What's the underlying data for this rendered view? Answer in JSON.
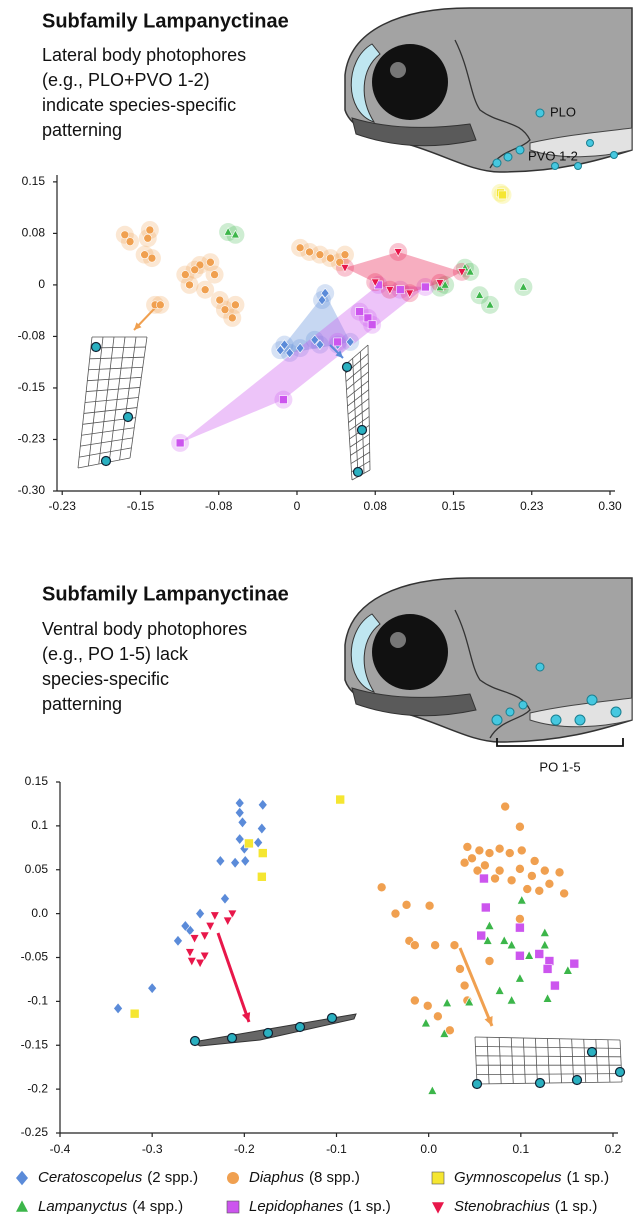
{
  "chart_data": [
    {
      "type": "scatter",
      "title": "Subfamily Lampanyctinae",
      "subtitle": [
        "Lateral body photophores",
        "(e.g., PLO+PVO 1-2)",
        "indicate species-specific",
        "patterning"
      ],
      "annotations": [
        "PLO",
        "PVO 1-2"
      ],
      "xlim": [
        -0.23,
        0.3
      ],
      "ylim": [
        -0.3,
        0.16
      ],
      "xticks": [
        {
          "value": -0.225,
          "label": "-0.23"
        },
        -0.15,
        {
          "value": -0.075,
          "label": "-0.08"
        },
        0,
        {
          "value": 0.075,
          "label": "0.08"
        },
        0.15,
        {
          "value": 0.225,
          "label": "0.23"
        },
        {
          "value": 0.3,
          "label": "0.30"
        }
      ],
      "yticks": [
        0.15,
        {
          "value": 0.075,
          "label": "0.08"
        },
        0,
        {
          "value": -0.075,
          "label": "-0.08"
        },
        -0.15,
        {
          "value": -0.225,
          "label": "-0.23"
        },
        {
          "value": -0.3,
          "label": "-0.30"
        }
      ],
      "halo": true,
      "series": [
        {
          "color": "#5b8bd9",
          "marker": "diamond",
          "hull": true,
          "x": [
            0.027,
            0.024,
            -0.016,
            -0.007,
            0.003,
            0.017,
            0.022,
            0.039,
            0.051,
            -0.012
          ],
          "y": [
            -0.012,
            -0.022,
            -0.095,
            -0.099,
            -0.092,
            -0.08,
            -0.087,
            -0.087,
            -0.083,
            -0.087
          ]
        },
        {
          "color": "#f0a050",
          "marker": "circle",
          "x": [
            -0.165,
            -0.16,
            -0.141,
            -0.143,
            -0.146,
            -0.139,
            -0.107,
            -0.103,
            -0.093,
            -0.083,
            -0.088,
            -0.074,
            -0.069,
            -0.062,
            -0.059,
            -0.098,
            -0.079,
            0.003,
            0.012,
            0.022,
            0.032,
            0.041,
            0.046,
            -0.136,
            -0.131
          ],
          "y": [
            0.073,
            0.063,
            0.08,
            0.068,
            0.044,
            0.039,
            0.015,
            0.0,
            0.029,
            0.033,
            -0.007,
            -0.022,
            -0.036,
            -0.048,
            -0.029,
            0.022,
            0.015,
            0.054,
            0.048,
            0.044,
            0.039,
            0.033,
            0.044,
            -0.029,
            -0.029
          ]
        },
        {
          "color": "#f5e631",
          "marker": "square",
          "x": [
            0.195,
            0.197
          ],
          "y": [
            0.134,
            0.131
          ]
        },
        {
          "color": "#3cb64a",
          "marker": "triangle",
          "x": [
            -0.066,
            -0.059,
            0.137,
            0.142,
            0.161,
            0.166,
            0.175,
            0.185,
            0.217
          ],
          "y": [
            0.077,
            0.073,
            -0.004,
            0.0,
            0.025,
            0.019,
            -0.015,
            -0.029,
            -0.003
          ]
        },
        {
          "color": "#cc55ee",
          "marker": "square",
          "hull": true,
          "x": [
            -0.112,
            -0.013,
            0.039,
            0.068,
            0.072,
            0.078,
            0.099,
            0.123,
            0.06
          ],
          "y": [
            -0.23,
            -0.167,
            -0.083,
            -0.048,
            -0.058,
            0.0,
            -0.007,
            -0.003,
            -0.039
          ]
        },
        {
          "color": "#e8174a",
          "marker": "triangle-down",
          "hull": true,
          "x": [
            0.046,
            0.075,
            0.097,
            0.108,
            0.137,
            0.158,
            0.089
          ],
          "y": [
            0.025,
            0.004,
            0.048,
            -0.012,
            0.003,
            0.019,
            -0.007
          ]
        }
      ]
    },
    {
      "type": "scatter",
      "title": "Subfamily Lampanyctinae",
      "subtitle": [
        "Ventral body photophores",
        "(e.g., PO 1-5) lack",
        "species-specific",
        "patterning"
      ],
      "annotations": [
        "PO 1-5"
      ],
      "xlim": [
        -0.4,
        0.2
      ],
      "ylim": [
        -0.25,
        0.15
      ],
      "xticks": [
        -0.4,
        -0.3,
        -0.2,
        -0.1,
        {
          "value": 0,
          "label": "0.0"
        },
        0.1,
        0.2
      ],
      "yticks": [
        0.15,
        0.1,
        0.05,
        {
          "value": 0,
          "label": "0.0"
        },
        -0.05,
        -0.1,
        -0.15,
        -0.2,
        -0.25
      ],
      "series": [
        {
          "name": "Ceratoscopelus",
          "count": "(2 spp.)",
          "color": "#5b8bd9",
          "marker": "diamond",
          "x": [
            -0.205,
            -0.205,
            -0.18,
            -0.202,
            -0.181,
            -0.205,
            -0.2,
            -0.185,
            -0.226,
            -0.21,
            -0.199,
            -0.221,
            -0.248,
            -0.259,
            -0.264,
            -0.272,
            -0.3,
            -0.337
          ],
          "y": [
            0.126,
            0.115,
            0.124,
            0.104,
            0.097,
            0.085,
            0.074,
            0.081,
            0.06,
            0.058,
            0.06,
            0.017,
            0.0,
            -0.019,
            -0.014,
            -0.031,
            -0.085,
            -0.108
          ]
        },
        {
          "name": "Diaphus",
          "count": "(8 spp.)",
          "color": "#f0a050",
          "marker": "circle",
          "x": [
            0.083,
            0.099,
            0.042,
            0.055,
            0.066,
            0.077,
            0.088,
            0.101,
            0.115,
            0.126,
            0.142,
            0.147,
            0.12,
            0.107,
            0.09,
            0.072,
            0.053,
            0.039,
            0.047,
            0.061,
            0.077,
            0.099,
            0.112,
            0.131,
            -0.051,
            -0.024,
            0.001,
            -0.021,
            -0.015,
            0.007,
            0.028,
            0.034,
            0.039,
            -0.001,
            -0.015,
            0.01,
            0.023,
            0.042,
            0.066,
            -0.036,
            0.099
          ],
          "y": [
            0.122,
            0.099,
            0.076,
            0.072,
            0.069,
            0.074,
            0.069,
            0.072,
            0.06,
            0.049,
            0.047,
            0.023,
            0.026,
            0.028,
            0.038,
            0.04,
            0.049,
            0.058,
            0.063,
            0.055,
            0.049,
            0.051,
            0.043,
            0.034,
            0.03,
            0.01,
            0.009,
            -0.031,
            -0.036,
            -0.036,
            -0.036,
            -0.063,
            -0.082,
            -0.105,
            -0.099,
            -0.117,
            -0.133,
            -0.099,
            -0.054,
            0.0,
            -0.006
          ]
        },
        {
          "name": "Gymnoscopelus",
          "count": "(1 sp.)",
          "color": "#f5e631",
          "marker": "square",
          "x": [
            -0.096,
            -0.195,
            -0.18,
            -0.181,
            -0.319
          ],
          "y": [
            0.13,
            0.08,
            0.069,
            0.042,
            -0.114
          ]
        },
        {
          "name": "Lampanyctus",
          "count": "(4 spp.)",
          "color": "#3cb64a",
          "marker": "triangle",
          "x": [
            0.101,
            0.126,
            0.126,
            0.066,
            0.064,
            0.082,
            0.09,
            0.109,
            0.151,
            0.099,
            0.077,
            0.129,
            0.09,
            0.044,
            0.02,
            -0.003,
            0.017,
            0.004
          ],
          "y": [
            0.015,
            -0.022,
            -0.036,
            -0.014,
            -0.031,
            -0.031,
            -0.036,
            -0.048,
            -0.065,
            -0.074,
            -0.088,
            -0.097,
            -0.099,
            -0.101,
            -0.102,
            -0.125,
            -0.137,
            -0.202
          ]
        },
        {
          "name": "Lepidophanes",
          "count": "(1 sp.)",
          "color": "#cc55ee",
          "marker": "square",
          "x": [
            0.06,
            0.062,
            0.057,
            0.099,
            0.099,
            0.12,
            0.131,
            0.129,
            0.158,
            0.137
          ],
          "y": [
            0.04,
            0.007,
            -0.025,
            -0.016,
            -0.048,
            -0.046,
            -0.054,
            -0.063,
            -0.057,
            -0.082
          ]
        },
        {
          "name": "Stenobrachius",
          "count": "(1 sp.)",
          "color": "#e8174a",
          "marker": "triangle-down",
          "x": [
            -0.213,
            -0.218,
            -0.232,
            -0.237,
            -0.243,
            -0.254,
            -0.259,
            -0.248,
            -0.257,
            -0.243
          ],
          "y": [
            0.0,
            -0.008,
            -0.002,
            -0.014,
            -0.025,
            -0.028,
            -0.044,
            -0.056,
            -0.054,
            -0.048
          ]
        }
      ]
    }
  ]
}
